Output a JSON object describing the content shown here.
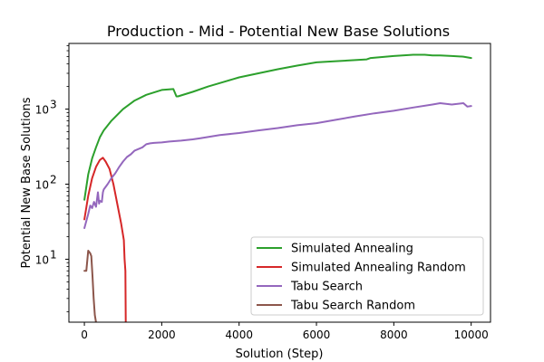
{
  "chart_data": {
    "type": "line",
    "title": "Production - Mid - Potential New Base Solutions",
    "xlabel": "Solution (Step)",
    "ylabel": "Potential New Base Solutions",
    "xlim": [
      -400,
      10500
    ],
    "ylim": [
      1.45,
      7500
    ],
    "yscale": "log",
    "x_ticks": [
      0,
      2000,
      4000,
      6000,
      8000,
      10000
    ],
    "x_tick_labels": [
      "0",
      "2000",
      "4000",
      "6000",
      "8000",
      "10000"
    ],
    "y_ticks": [
      10,
      100,
      1000
    ],
    "y_tick_labels": [
      "10",
      "10",
      "10"
    ],
    "y_tick_exponents": [
      "1",
      "2",
      "3"
    ],
    "grid": false,
    "legend_position": "lower-right",
    "series": [
      {
        "name": "Simulated Annealing",
        "color": "#2ca02c",
        "x": [
          0,
          100,
          200,
          300,
          400,
          500,
          700,
          1000,
          1300,
          1600,
          2000,
          2300,
          2380,
          2420,
          2800,
          3200,
          3600,
          4000,
          4500,
          5000,
          5500,
          6000,
          6500,
          7000,
          7300,
          7400,
          8000,
          8500,
          8800,
          9000,
          9200,
          9500,
          9800,
          10000
        ],
        "y": [
          62,
          135,
          220,
          310,
          420,
          520,
          700,
          1000,
          1300,
          1550,
          1800,
          1850,
          1480,
          1480,
          1700,
          2000,
          2300,
          2650,
          3000,
          3400,
          3800,
          4200,
          4350,
          4500,
          4600,
          4800,
          5100,
          5300,
          5300,
          5200,
          5200,
          5100,
          5000,
          4800
        ]
      },
      {
        "name": "Simulated Annealing Random",
        "color": "#d62728",
        "x": [
          0,
          100,
          200,
          300,
          400,
          480,
          550,
          650,
          750,
          850,
          950,
          1020,
          1040,
          1060,
          1070
        ],
        "y": [
          34,
          70,
          120,
          170,
          210,
          225,
          200,
          160,
          100,
          55,
          30,
          18,
          10,
          7,
          1.45
        ]
      },
      {
        "name": "Tabu Search",
        "color": "#9467bd",
        "x": [
          0,
          100,
          150,
          200,
          250,
          300,
          350,
          380,
          400,
          450,
          480,
          500,
          600,
          700,
          800,
          900,
          1000,
          1100,
          1200,
          1300,
          1500,
          1600,
          1700,
          1800,
          2000,
          2200,
          2500,
          2800,
          3000,
          3500,
          4000,
          4500,
          5000,
          5500,
          6000,
          6500,
          7000,
          7500,
          8000,
          8500,
          9000,
          9200,
          9500,
          9800,
          9900,
          10000
        ],
        "y": [
          26,
          40,
          52,
          48,
          58,
          50,
          78,
          55,
          60,
          58,
          78,
          85,
          100,
          120,
          140,
          170,
          200,
          230,
          250,
          280,
          310,
          340,
          350,
          355,
          360,
          370,
          380,
          395,
          410,
          450,
          480,
          520,
          560,
          610,
          650,
          720,
          800,
          880,
          950,
          1050,
          1150,
          1200,
          1150,
          1200,
          1080,
          1100
        ]
      },
      {
        "name": "Tabu Search Random",
        "color": "#8c564b",
        "x": [
          0,
          50,
          100,
          150,
          180,
          210,
          240,
          270,
          300
        ],
        "y": [
          7,
          7,
          13,
          12,
          11,
          6,
          3,
          1.8,
          1.45
        ]
      }
    ]
  }
}
